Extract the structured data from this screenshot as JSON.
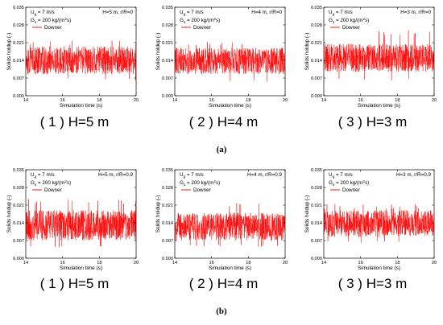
{
  "figure_labels": [
    "(a)",
    "(b)"
  ],
  "chart_data": [
    {
      "id": "a1",
      "type": "line",
      "caption": "( 1 ) H=5 m",
      "ug_text": "U",
      "ug_sub": "g",
      "ug_value": " = 7 m/s",
      "gs_text": "G",
      "gs_sub": "s",
      "gs_value": " = 200 kg/(m",
      "gs_sup": "2",
      "gs_end": "s)",
      "location": "H=5 m, r/R=0",
      "legend": "Downer",
      "xlabel": "Simulation time (s)",
      "ylabel": "Solids holdup (-)",
      "xlim": [
        14,
        20
      ],
      "ylim": [
        0,
        0.035
      ],
      "xticks": [
        "14",
        "16",
        "18",
        "20"
      ],
      "yticks": [
        "0.000",
        "0.007",
        "0.014",
        "0.021",
        "0.028",
        "0.035"
      ],
      "color": "#ff0000",
      "signal": {
        "mean": 0.0135,
        "band_low": 0.0085,
        "band_high": 0.0195,
        "peak_max": 0.022,
        "trough_min": 0.006
      }
    },
    {
      "id": "a2",
      "type": "line",
      "caption": "( 2 ) H=4 m",
      "ug_text": "U",
      "ug_sub": "g",
      "ug_value": " = 7 m/s",
      "gs_text": "G",
      "gs_sub": "s",
      "gs_value": " = 200 kg/(m",
      "gs_sup": "2",
      "gs_end": "s)",
      "location": "H=4 m, r/R=0",
      "legend": "Downer",
      "xlabel": "Simulation time (s)",
      "ylabel": "Solids holdup (-)",
      "xlim": [
        14,
        20
      ],
      "ylim": [
        0,
        0.035
      ],
      "xticks": [
        "14",
        "16",
        "18",
        "20"
      ],
      "yticks": [
        "0.000",
        "0.007",
        "0.014",
        "0.021",
        "0.028",
        "0.035"
      ],
      "color": "#ff0000",
      "signal": {
        "mean": 0.0135,
        "band_low": 0.0085,
        "band_high": 0.019,
        "peak_max": 0.0215,
        "trough_min": 0.0055
      }
    },
    {
      "id": "a3",
      "type": "line",
      "caption": "( 3 ) H=3 m",
      "ug_text": "U",
      "ug_sub": "g",
      "ug_value": " = 7 m/s",
      "gs_text": "G",
      "gs_sub": "s",
      "gs_value": " = 200 kg/(m",
      "gs_sup": "2",
      "gs_end": "s)",
      "location": "H=3 m, r/R=0",
      "legend": "Downer",
      "xlabel": "Simulation time (s)",
      "ylabel": "Solids holdup (-)",
      "xlim": [
        14,
        20
      ],
      "ylim": [
        0,
        0.035
      ],
      "xticks": [
        "14",
        "16",
        "18",
        "20"
      ],
      "yticks": [
        "0.000",
        "0.007",
        "0.014",
        "0.021",
        "0.028",
        "0.035"
      ],
      "color": "#ff0000",
      "signal": {
        "mean": 0.0145,
        "band_low": 0.0095,
        "band_high": 0.0205,
        "peak_max": 0.026,
        "trough_min": 0.006
      }
    },
    {
      "id": "b1",
      "type": "line",
      "caption": "( 1 ) H=5 m",
      "ug_text": "U",
      "ug_sub": "g",
      "ug_value": " = 7 m/s",
      "gs_text": "G",
      "gs_sub": "s",
      "gs_value": " = 200 kg/(m",
      "gs_sup": "2",
      "gs_end": "s)",
      "location": "H=5 m, r/R=0.9",
      "legend": "Downer",
      "xlabel": "Simulation time (s)",
      "ylabel": "Solids holdup (-)",
      "xlim": [
        14,
        20
      ],
      "ylim": [
        0,
        0.035
      ],
      "xticks": [
        "14",
        "16",
        "18",
        "20"
      ],
      "yticks": [
        "0.000",
        "0.007",
        "0.014",
        "0.021",
        "0.028",
        "0.035"
      ],
      "color": "#ff0000",
      "signal": {
        "mean": 0.0125,
        "band_low": 0.007,
        "band_high": 0.019,
        "peak_max": 0.0235,
        "trough_min": 0.004
      }
    },
    {
      "id": "b2",
      "type": "line",
      "caption": "( 2 ) H=4 m",
      "ug_text": "U",
      "ug_sub": "g",
      "ug_value": " = 7 m/s",
      "gs_text": "G",
      "gs_sub": "s",
      "gs_value": " = 200 kg/(m",
      "gs_sup": "2",
      "gs_end": "s)",
      "location": "H=4 m, r/R=0.9",
      "legend": "Downer",
      "xlabel": "Simulation time (s)",
      "ylabel": "Solids holdup (-)",
      "xlim": [
        14,
        20
      ],
      "ylim": [
        0,
        0.035
      ],
      "xticks": [
        "14",
        "16",
        "18",
        "20"
      ],
      "yticks": [
        "0.000",
        "0.007",
        "0.014",
        "0.021",
        "0.028",
        "0.035"
      ],
      "color": "#ff0000",
      "signal": {
        "mean": 0.0125,
        "band_low": 0.007,
        "band_high": 0.018,
        "peak_max": 0.0225,
        "trough_min": 0.0045
      }
    },
    {
      "id": "b3",
      "type": "line",
      "caption": "( 3 ) H=3 m",
      "ug_text": "U",
      "ug_sub": "g",
      "ug_value": " = 7 m/s",
      "gs_text": "G",
      "gs_sub": "s",
      "gs_value": " = 200 kg/(m",
      "gs_sup": "2",
      "gs_end": "s)",
      "location": "H=3 m, r/R=0.9",
      "legend": "Downer",
      "xlabel": "Simulation time (s)",
      "ylabel": "Solids holdup (-)",
      "xlim": [
        14,
        20
      ],
      "ylim": [
        0,
        0.035
      ],
      "xticks": [
        "14",
        "16",
        "18",
        "20"
      ],
      "yticks": [
        "0.000",
        "0.007",
        "0.014",
        "0.021",
        "0.028",
        "0.035"
      ],
      "color": "#ff0000",
      "signal": {
        "mean": 0.0135,
        "band_low": 0.0085,
        "band_high": 0.019,
        "peak_max": 0.0215,
        "trough_min": 0.006
      }
    }
  ]
}
